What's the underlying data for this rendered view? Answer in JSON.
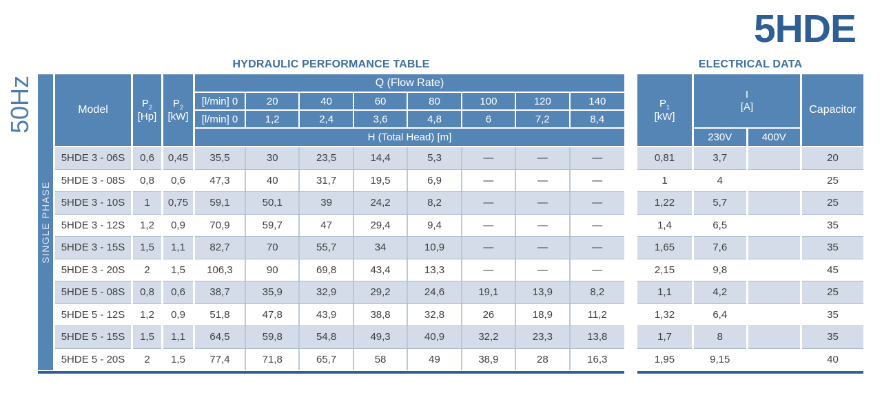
{
  "page": {
    "product_title": "5HDE",
    "frequency_label": "50Hz",
    "phase_label": "SINGLE PHASE"
  },
  "colors": {
    "header_blue": "#5585b5",
    "row_alt": "#d3dce8",
    "accent_dark": "#2d5f94",
    "title_blue": "#3d6fa2"
  },
  "hydraulic": {
    "title": "HYDRAULIC PERFORMANCE TABLE",
    "header": {
      "model": "Model",
      "p_symbol": "P",
      "p2_sub": "2",
      "hp_unit": "[Hp]",
      "kw_unit": "[kW]",
      "q_title": "Q (Flow Rate)",
      "flow_row1": [
        "[l/min] 0",
        "20",
        "40",
        "60",
        "80",
        "100",
        "120",
        "140"
      ],
      "flow_row2": [
        "[l/min] 0",
        "1,2",
        "2,4",
        "3,6",
        "4,8",
        "6",
        "7,2",
        "8,4"
      ],
      "h_title": "H (Total Head) [m]"
    },
    "rows": [
      {
        "model": "5HDE 3 - 06S",
        "hp": "0,6",
        "kw": "0,45",
        "head": [
          "35,5",
          "30",
          "23,5",
          "14,4",
          "5,3",
          "—",
          "—",
          "—"
        ]
      },
      {
        "model": "5HDE 3 - 08S",
        "hp": "0,8",
        "kw": "0,6",
        "head": [
          "47,3",
          "40",
          "31,7",
          "19,5",
          "6,9",
          "—",
          "—",
          "—"
        ]
      },
      {
        "model": "5HDE 3 - 10S",
        "hp": "1",
        "kw": "0,75",
        "head": [
          "59,1",
          "50,1",
          "39",
          "24,2",
          "8,2",
          "—",
          "—",
          "—"
        ]
      },
      {
        "model": "5HDE 3 - 12S",
        "hp": "1,2",
        "kw": "0,9",
        "head": [
          "70,9",
          "59,7",
          "47",
          "29,4",
          "9,4",
          "—",
          "—",
          "—"
        ]
      },
      {
        "model": "5HDE 3 - 15S",
        "hp": "1,5",
        "kw": "1,1",
        "head": [
          "82,7",
          "70",
          "55,7",
          "34",
          "10,9",
          "—",
          "—",
          "—"
        ]
      },
      {
        "model": "5HDE 3 - 20S",
        "hp": "2",
        "kw": "1,5",
        "head": [
          "106,3",
          "90",
          "69,8",
          "43,4",
          "13,3",
          "—",
          "—",
          "—"
        ]
      },
      {
        "model": "5HDE 5 - 08S",
        "hp": "0,8",
        "kw": "0,6",
        "head": [
          "38,7",
          "35,9",
          "32,9",
          "29,2",
          "24,6",
          "19,1",
          "13,9",
          "8,2"
        ]
      },
      {
        "model": "5HDE 5 - 12S",
        "hp": "1,2",
        "kw": "0,9",
        "head": [
          "51,8",
          "47,8",
          "43,9",
          "38,8",
          "32,8",
          "26",
          "18,9",
          "11,2"
        ]
      },
      {
        "model": "5HDE 5 - 15S",
        "hp": "1,5",
        "kw": "1,1",
        "head": [
          "64,5",
          "59,8",
          "54,8",
          "49,3",
          "40,9",
          "32,2",
          "23,3",
          "13,8"
        ]
      },
      {
        "model": "5HDE 5 - 20S",
        "hp": "2",
        "kw": "1,5",
        "head": [
          "77,4",
          "71,8",
          "65,7",
          "58",
          "49",
          "38,9",
          "28",
          "16,3"
        ]
      }
    ]
  },
  "electrical": {
    "title": "ELECTRICAL DATA",
    "header": {
      "p_symbol": "P",
      "p1_sub": "1",
      "p1_unit": "[kW]",
      "i_symbol": "I",
      "i_unit": "[A]",
      "v230": "230V",
      "v400": "400V",
      "capacitor": "Capacitor"
    },
    "rows": [
      {
        "p1": "0,81",
        "i230": "3,7",
        "i400": "",
        "cap": "20"
      },
      {
        "p1": "1",
        "i230": "4",
        "i400": "",
        "cap": "25"
      },
      {
        "p1": "1,22",
        "i230": "5,7",
        "i400": "",
        "cap": "25"
      },
      {
        "p1": "1,4",
        "i230": "6,5",
        "i400": "",
        "cap": "35"
      },
      {
        "p1": "1,65",
        "i230": "7,6",
        "i400": "",
        "cap": "35"
      },
      {
        "p1": "2,15",
        "i230": "9,8",
        "i400": "",
        "cap": "45"
      },
      {
        "p1": "1,1",
        "i230": "4,2",
        "i400": "",
        "cap": "25"
      },
      {
        "p1": "1,32",
        "i230": "6,4",
        "i400": "",
        "cap": "35"
      },
      {
        "p1": "1,7",
        "i230": "8",
        "i400": "",
        "cap": "35"
      },
      {
        "p1": "1,95",
        "i230": "9,15",
        "i400": "",
        "cap": "40"
      }
    ]
  }
}
